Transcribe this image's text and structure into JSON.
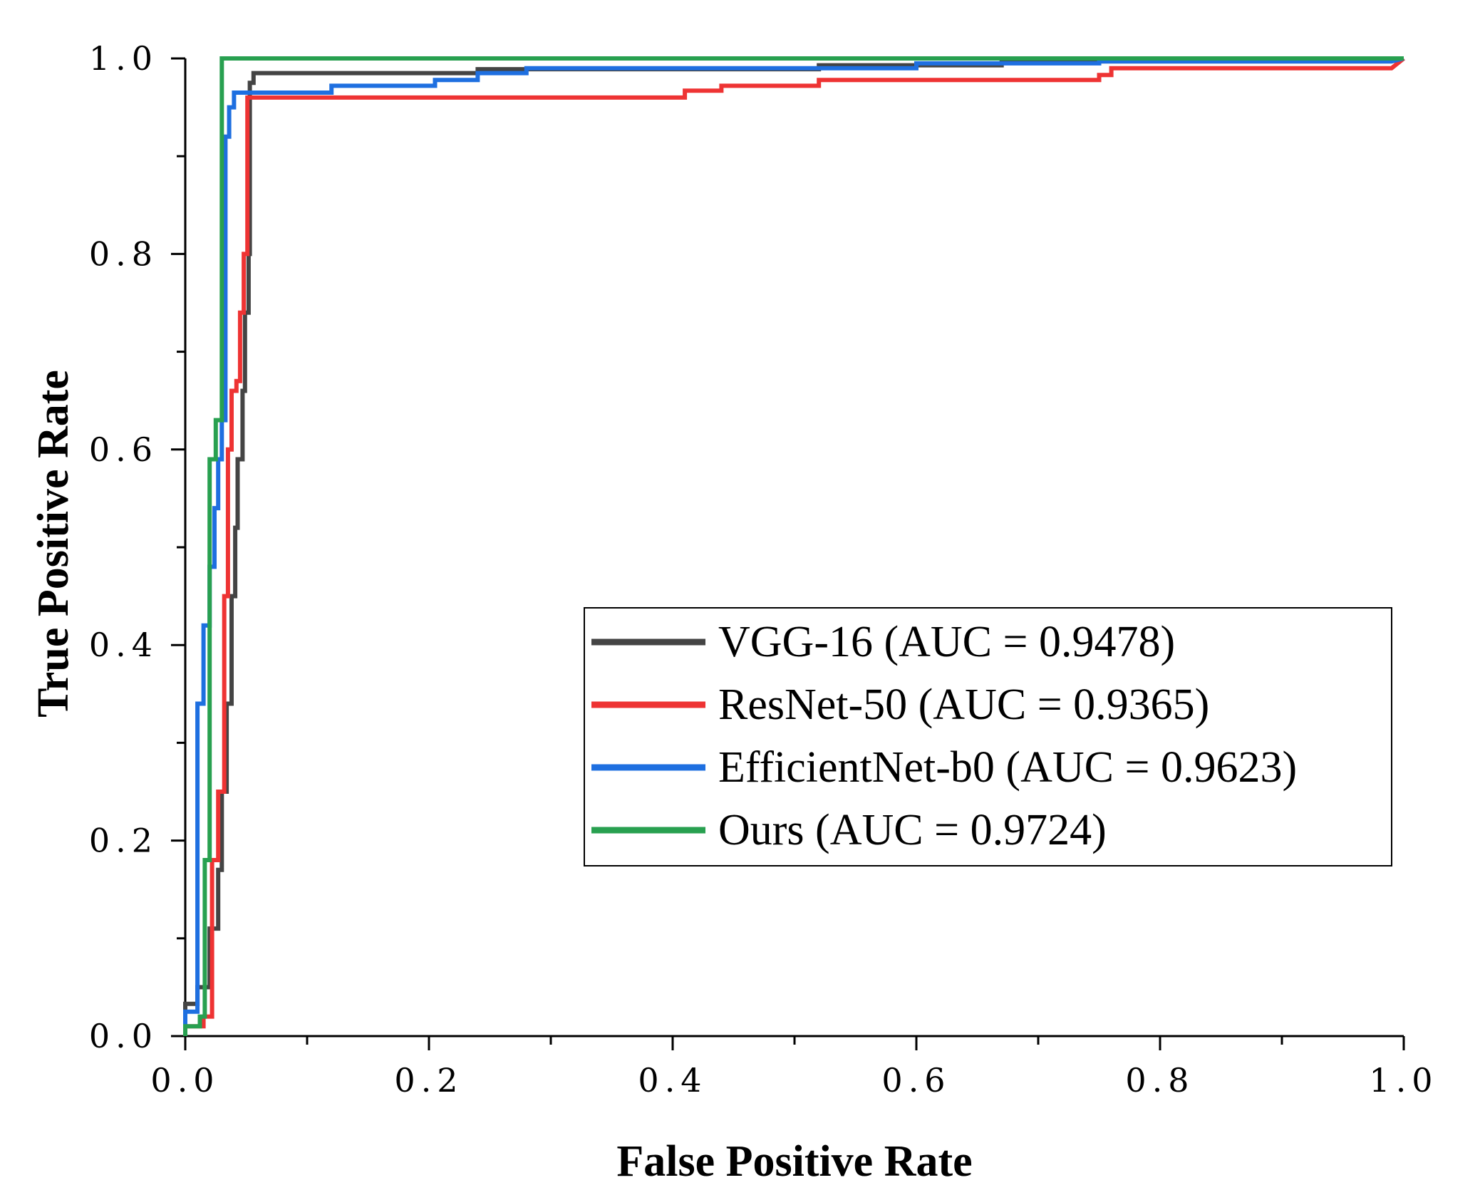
{
  "chart_data": {
    "type": "line",
    "title": "",
    "xlabel": "False Positive Rate",
    "ylabel": "True Positive Rate",
    "xlim": [
      0.0,
      1.0
    ],
    "ylim": [
      0.0,
      1.0
    ],
    "xticks": [
      "0.0",
      "0.2",
      "0.4",
      "0.6",
      "0.8",
      "1.0"
    ],
    "yticks": [
      "0.0",
      "0.2",
      "0.4",
      "0.6",
      "0.8",
      "1.0"
    ],
    "grid": false,
    "legend_position": "center-right",
    "series": [
      {
        "name": "VGG-16 (AUC = 0.9478)",
        "color": "#444444",
        "points": [
          [
            0.0,
            0.0
          ],
          [
            0.0,
            0.033
          ],
          [
            0.01,
            0.033
          ],
          [
            0.01,
            0.05
          ],
          [
            0.02,
            0.05
          ],
          [
            0.02,
            0.11
          ],
          [
            0.027,
            0.11
          ],
          [
            0.027,
            0.17
          ],
          [
            0.03,
            0.17
          ],
          [
            0.03,
            0.25
          ],
          [
            0.034,
            0.25
          ],
          [
            0.034,
            0.34
          ],
          [
            0.038,
            0.34
          ],
          [
            0.038,
            0.45
          ],
          [
            0.041,
            0.45
          ],
          [
            0.041,
            0.52
          ],
          [
            0.043,
            0.52
          ],
          [
            0.043,
            0.59
          ],
          [
            0.047,
            0.59
          ],
          [
            0.047,
            0.66
          ],
          [
            0.049,
            0.66
          ],
          [
            0.049,
            0.74
          ],
          [
            0.052,
            0.74
          ],
          [
            0.052,
            0.8
          ],
          [
            0.053,
            0.8
          ],
          [
            0.053,
            0.975
          ],
          [
            0.056,
            0.975
          ],
          [
            0.056,
            0.985
          ],
          [
            0.24,
            0.985
          ],
          [
            0.24,
            0.989
          ],
          [
            0.52,
            0.989
          ],
          [
            0.52,
            0.993
          ],
          [
            0.67,
            0.993
          ],
          [
            0.67,
            0.997
          ],
          [
            0.99,
            0.997
          ],
          [
            1.0,
            1.0
          ]
        ]
      },
      {
        "name": "ResNet-50 (AUC = 0.9365)",
        "color": "#EE3333",
        "points": [
          [
            0.0,
            0.0
          ],
          [
            0.0,
            0.01
          ],
          [
            0.015,
            0.01
          ],
          [
            0.015,
            0.02
          ],
          [
            0.022,
            0.02
          ],
          [
            0.022,
            0.18
          ],
          [
            0.027,
            0.18
          ],
          [
            0.027,
            0.25
          ],
          [
            0.032,
            0.25
          ],
          [
            0.032,
            0.45
          ],
          [
            0.035,
            0.45
          ],
          [
            0.035,
            0.6
          ],
          [
            0.038,
            0.6
          ],
          [
            0.038,
            0.66
          ],
          [
            0.042,
            0.66
          ],
          [
            0.042,
            0.67
          ],
          [
            0.045,
            0.67
          ],
          [
            0.045,
            0.74
          ],
          [
            0.048,
            0.74
          ],
          [
            0.048,
            0.8
          ],
          [
            0.051,
            0.8
          ],
          [
            0.051,
            0.96
          ],
          [
            0.41,
            0.96
          ],
          [
            0.41,
            0.967
          ],
          [
            0.44,
            0.967
          ],
          [
            0.44,
            0.972
          ],
          [
            0.52,
            0.972
          ],
          [
            0.52,
            0.978
          ],
          [
            0.75,
            0.978
          ],
          [
            0.75,
            0.983
          ],
          [
            0.76,
            0.983
          ],
          [
            0.76,
            0.99
          ],
          [
            0.99,
            0.99
          ],
          [
            1.0,
            1.0
          ]
        ]
      },
      {
        "name": "EfficientNet-b0 (AUC = 0.9623)",
        "color": "#1E6FE0",
        "points": [
          [
            0.0,
            0.0
          ],
          [
            0.0,
            0.025
          ],
          [
            0.01,
            0.025
          ],
          [
            0.01,
            0.34
          ],
          [
            0.015,
            0.34
          ],
          [
            0.015,
            0.42
          ],
          [
            0.02,
            0.42
          ],
          [
            0.02,
            0.48
          ],
          [
            0.024,
            0.48
          ],
          [
            0.024,
            0.54
          ],
          [
            0.027,
            0.54
          ],
          [
            0.027,
            0.59
          ],
          [
            0.03,
            0.59
          ],
          [
            0.03,
            0.63
          ],
          [
            0.033,
            0.63
          ],
          [
            0.033,
            0.92
          ],
          [
            0.036,
            0.92
          ],
          [
            0.036,
            0.95
          ],
          [
            0.04,
            0.95
          ],
          [
            0.04,
            0.965
          ],
          [
            0.12,
            0.965
          ],
          [
            0.12,
            0.972
          ],
          [
            0.205,
            0.972
          ],
          [
            0.205,
            0.978
          ],
          [
            0.24,
            0.978
          ],
          [
            0.24,
            0.985
          ],
          [
            0.28,
            0.985
          ],
          [
            0.28,
            0.99
          ],
          [
            0.6,
            0.99
          ],
          [
            0.6,
            0.995
          ],
          [
            0.75,
            0.995
          ],
          [
            0.75,
            0.997
          ],
          [
            0.99,
            0.997
          ],
          [
            1.0,
            1.0
          ]
        ]
      },
      {
        "name": "Ours (AUC = 0.9724)",
        "color": "#28A050",
        "points": [
          [
            0.0,
            0.0
          ],
          [
            0.0,
            0.01
          ],
          [
            0.012,
            0.01
          ],
          [
            0.012,
            0.02
          ],
          [
            0.016,
            0.02
          ],
          [
            0.016,
            0.18
          ],
          [
            0.02,
            0.18
          ],
          [
            0.02,
            0.59
          ],
          [
            0.025,
            0.59
          ],
          [
            0.025,
            0.63
          ],
          [
            0.03,
            0.63
          ],
          [
            0.03,
            1.0
          ],
          [
            1.0,
            1.0
          ]
        ]
      }
    ]
  }
}
